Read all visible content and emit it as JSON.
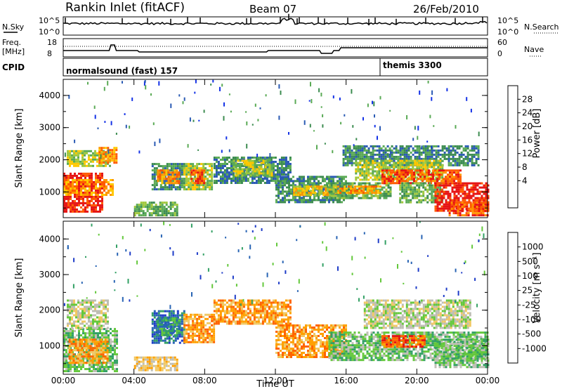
{
  "header": {
    "station": "Rankin Inlet (fitACF)",
    "beam": "Beam 07",
    "date": "26/Feb/2010"
  },
  "top_panels": {
    "nsky_label": "N.Sky",
    "nsearch_label": "N.Search",
    "noise_ticks_left": [
      "10^5",
      "10^0"
    ],
    "noise_ticks_right": [
      "10^5",
      "10^0"
    ],
    "freq_label_1": "Freq.",
    "freq_label_2": "[MHz]",
    "freq_ticks": [
      "18",
      "8"
    ],
    "nave_label": "Nave",
    "nave_ticks": [
      "60",
      "0"
    ],
    "cpid_label": "CPID",
    "cpid_1": "normalsound (fast) 157",
    "cpid_2": "themis 3300"
  },
  "colors": {
    "power": [
      "#1432e6",
      "#2a5ab4",
      "#3c8c50",
      "#5aaa55",
      "#a0c83c",
      "#ffc800",
      "#ff9600",
      "#ff5a00",
      "#e61414"
    ],
    "velocity": [
      "#1e3cc8",
      "#2864b4",
      "#32a064",
      "#64c83c",
      "#bebeb4",
      "#f0c864",
      "#ffa000",
      "#ff6400",
      "#e61414"
    ]
  },
  "chart_data": [
    {
      "type": "heatmap",
      "name": "power",
      "ylabel": "Slant Range [km]",
      "yticks": [
        "1000",
        "2000",
        "3000",
        "4000"
      ],
      "ylim": [
        200,
        4500
      ],
      "xlim": [
        0,
        24
      ],
      "colorbar_label": "Power [dB]",
      "colorbar_ticks": [
        "28",
        "24",
        "20",
        "16",
        "12",
        "8",
        "4"
      ],
      "regions": [
        {
          "t0": 0.0,
          "t1": 2.2,
          "r0": 400,
          "r1": 1600,
          "level": 8
        },
        {
          "t0": 0.0,
          "t1": 2.8,
          "r0": 900,
          "r1": 1400,
          "level": 6
        },
        {
          "t0": 0.2,
          "t1": 2.6,
          "r0": 1800,
          "r1": 2300,
          "level": 4
        },
        {
          "t0": 2.0,
          "t1": 3.0,
          "r0": 1900,
          "r1": 2400,
          "level": 6
        },
        {
          "t0": 4.0,
          "t1": 6.5,
          "r0": 300,
          "r1": 700,
          "level": 3
        },
        {
          "t0": 5.0,
          "t1": 6.8,
          "r0": 1100,
          "r1": 1900,
          "level": 2
        },
        {
          "t0": 5.3,
          "t1": 6.6,
          "r0": 1300,
          "r1": 1700,
          "level": 6
        },
        {
          "t0": 6.8,
          "t1": 8.4,
          "r0": 1100,
          "r1": 1900,
          "level": 4
        },
        {
          "t0": 7.2,
          "t1": 8.0,
          "r0": 1300,
          "r1": 1700,
          "level": 7
        },
        {
          "t0": 8.5,
          "t1": 12.8,
          "r0": 1300,
          "r1": 2100,
          "level": 2
        },
        {
          "t0": 9.6,
          "t1": 11.8,
          "r0": 1500,
          "r1": 2000,
          "level": 4
        },
        {
          "t0": 12.0,
          "t1": 16.0,
          "r0": 700,
          "r1": 1500,
          "level": 2
        },
        {
          "t0": 13.0,
          "t1": 15.5,
          "r0": 900,
          "r1": 1200,
          "level": 5
        },
        {
          "t0": 15.0,
          "t1": 18.5,
          "r0": 800,
          "r1": 1300,
          "level": 3
        },
        {
          "t0": 15.5,
          "t1": 18.0,
          "r0": 950,
          "r1": 1200,
          "level": 6
        },
        {
          "t0": 15.8,
          "t1": 23.5,
          "r0": 1800,
          "r1": 2450,
          "level": 2
        },
        {
          "t0": 16.5,
          "t1": 21.5,
          "r0": 1400,
          "r1": 2000,
          "level": 4
        },
        {
          "t0": 18.0,
          "t1": 22.5,
          "r0": 1300,
          "r1": 1700,
          "level": 7
        },
        {
          "t0": 19.0,
          "t1": 21.5,
          "r0": 700,
          "r1": 1300,
          "level": 3
        },
        {
          "t0": 21.0,
          "t1": 24.0,
          "r0": 400,
          "r1": 1300,
          "level": 8
        },
        {
          "t0": 21.8,
          "t1": 24.0,
          "r0": 300,
          "r1": 700,
          "level": 7
        }
      ]
    },
    {
      "type": "heatmap",
      "name": "velocity",
      "ylabel": "Slant Range [km]",
      "yticks": [
        "1000",
        "2000",
        "3000",
        "4000"
      ],
      "ylim": [
        200,
        4500
      ],
      "xlim": [
        0,
        24
      ],
      "xlabel": "Time UT",
      "xticks": [
        "00:00",
        "04:00",
        "08:00",
        "12:00",
        "16:00",
        "20:00",
        "00:00"
      ],
      "colorbar_label": "Velocity [m s⁻¹]",
      "colorbar_ticks": [
        "1000",
        "500",
        "100",
        "25",
        "-25",
        "-100",
        "-500",
        "-1000"
      ],
      "regions": [
        {
          "t0": 0.0,
          "t1": 3.0,
          "r0": 300,
          "r1": 1500,
          "level": 3
        },
        {
          "t0": 0.3,
          "t1": 2.5,
          "r0": 500,
          "r1": 1200,
          "level": 6
        },
        {
          "t0": 0.2,
          "t1": 2.5,
          "r0": 1500,
          "r1": 2300,
          "level": 4
        },
        {
          "t0": 4.0,
          "t1": 6.5,
          "r0": 300,
          "r1": 700,
          "level": 5
        },
        {
          "t0": 5.0,
          "t1": 6.8,
          "r0": 1100,
          "r1": 2000,
          "level": 1
        },
        {
          "t0": 5.3,
          "t1": 6.5,
          "r0": 1300,
          "r1": 1800,
          "level": 2
        },
        {
          "t0": 6.8,
          "t1": 8.5,
          "r0": 1100,
          "r1": 1900,
          "level": 6
        },
        {
          "t0": 8.5,
          "t1": 12.8,
          "r0": 1600,
          "r1": 2300,
          "level": 6
        },
        {
          "t0": 12.0,
          "t1": 16.0,
          "r0": 700,
          "r1": 1600,
          "level": 6
        },
        {
          "t0": 15.0,
          "t1": 24.0,
          "r0": 600,
          "r1": 1400,
          "level": 3
        },
        {
          "t0": 17.0,
          "t1": 23.0,
          "r0": 1500,
          "r1": 2300,
          "level": 4
        },
        {
          "t0": 18.0,
          "t1": 20.5,
          "r0": 1000,
          "r1": 1300,
          "level": 7
        },
        {
          "t0": 21.0,
          "t1": 24.0,
          "r0": 400,
          "r1": 1200,
          "level": 3
        }
      ]
    }
  ]
}
